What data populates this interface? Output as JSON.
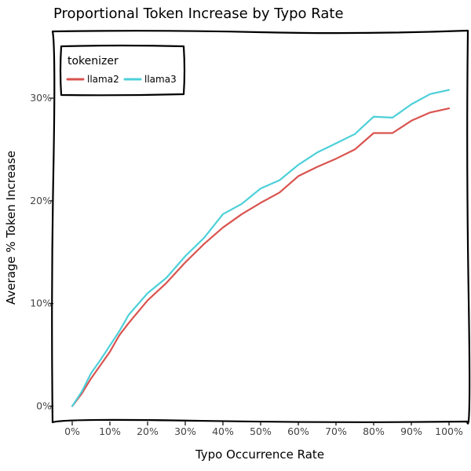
{
  "chart_data": {
    "type": "line",
    "title": "Proportional Token Increase by Typo Rate",
    "xlabel": "Typo Occurrence Rate",
    "ylabel": "Average % Token Increase",
    "x": [
      0,
      2.5,
      5,
      7.5,
      10,
      12.5,
      15,
      20,
      25,
      30,
      35,
      40,
      45,
      50,
      55,
      60,
      65,
      70,
      75,
      80,
      85,
      90,
      95,
      100
    ],
    "x_ticks": [
      0,
      10,
      20,
      30,
      40,
      50,
      60,
      70,
      80,
      90,
      100
    ],
    "x_tick_labels": [
      "0%",
      "10%",
      "20%",
      "30%",
      "40%",
      "50%",
      "60%",
      "70%",
      "80%",
      "90%",
      "100%"
    ],
    "y_ticks": [
      0,
      10,
      20,
      30
    ],
    "y_tick_labels": [
      "0%",
      "10%",
      "20%",
      "30%"
    ],
    "xlim": [
      -5,
      105
    ],
    "ylim": [
      -1.5,
      36.5
    ],
    "grid": false,
    "legend": {
      "title": "tokenizer",
      "placement": "top-left"
    },
    "series": [
      {
        "name": "llama2",
        "color": "#d9534f",
        "values": [
          0,
          1.2,
          2.7,
          4.0,
          5.3,
          6.9,
          8.1,
          10.3,
          12.0,
          14.0,
          15.8,
          17.4,
          18.7,
          19.8,
          20.8,
          22.4,
          23.3,
          24.1,
          25.0,
          26.6,
          26.6,
          27.8,
          28.6,
          29.0
        ]
      },
      {
        "name": "llama3",
        "color": "#4dd0d9",
        "values": [
          0,
          1.4,
          3.2,
          4.5,
          5.9,
          7.3,
          8.9,
          11.0,
          12.5,
          14.6,
          16.4,
          18.7,
          19.7,
          21.2,
          22.0,
          23.5,
          24.7,
          25.6,
          26.5,
          28.2,
          28.1,
          29.4,
          30.4,
          30.8
        ]
      }
    ]
  }
}
